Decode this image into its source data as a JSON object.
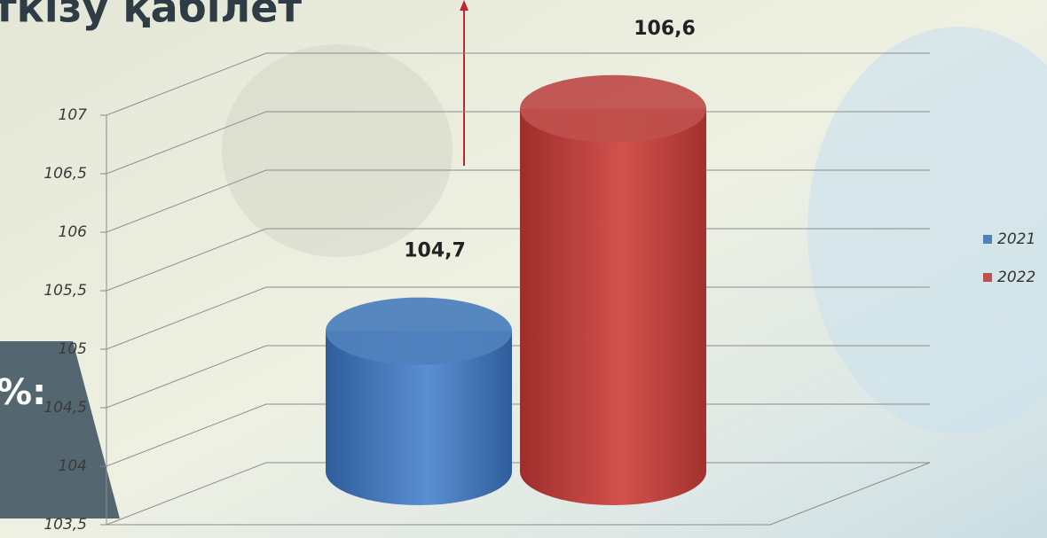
{
  "chart_data": {
    "type": "bar",
    "title": "ткізу қабілет",
    "side_label": "%:",
    "categories": [
      null
    ],
    "series": [
      {
        "name": "2021",
        "color": "#4f81bd",
        "values": [
          104.7
        ],
        "value_labels": [
          "104,7"
        ]
      },
      {
        "name": "2022",
        "color": "#c0504d",
        "values": [
          106.6
        ],
        "value_labels": [
          "106,6"
        ]
      }
    ],
    "ylim": [
      103.5,
      107
    ],
    "yticks": [
      {
        "value": 103.5,
        "label": "103,5"
      },
      {
        "value": 104,
        "label": "104"
      },
      {
        "value": 104.5,
        "label": "104,5"
      },
      {
        "value": 105,
        "label": "105"
      },
      {
        "value": 105.5,
        "label": "105,5"
      },
      {
        "value": 106,
        "label": "106"
      },
      {
        "value": 106.5,
        "label": "106,5"
      },
      {
        "value": 107,
        "label": "107"
      }
    ],
    "grid": true,
    "legend": "right"
  }
}
